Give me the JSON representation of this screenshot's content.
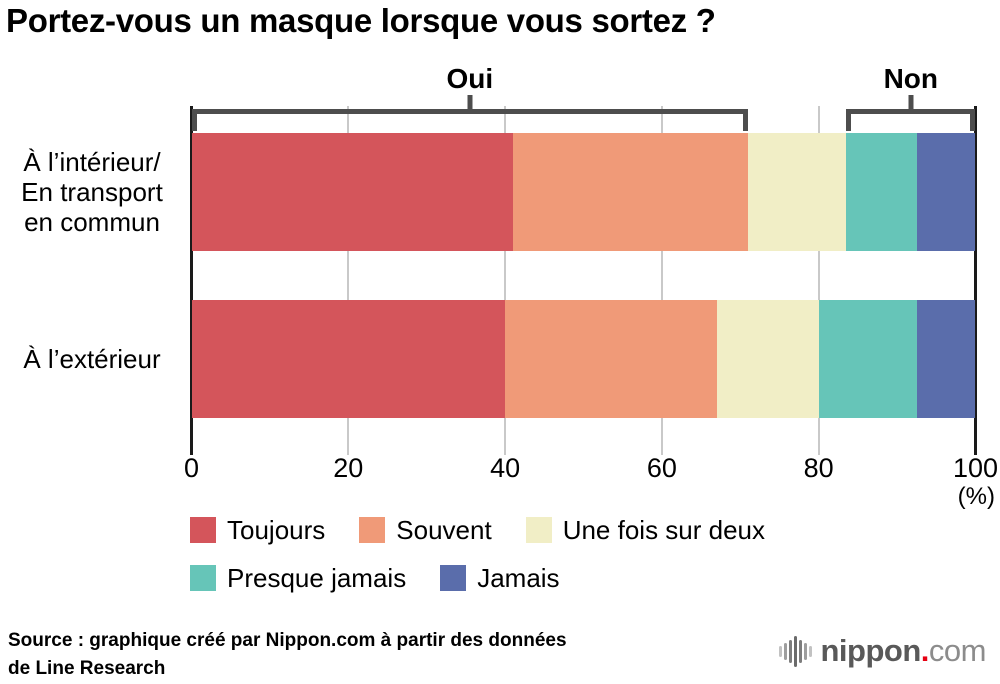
{
  "title": "Portez-vous un masque lorsque vous sortez ?",
  "chart_data": {
    "type": "bar",
    "orientation": "horizontal",
    "stacked": true,
    "title": "Portez-vous un masque lorsque vous sortez ?",
    "categories": [
      "À l’intérieur/\nEn transport\nen commun",
      "À l’extérieur"
    ],
    "series": [
      {
        "name": "Toujours",
        "color": "#d4555b",
        "values": [
          41,
          40
        ]
      },
      {
        "name": "Souvent",
        "color": "#f09a78",
        "values": [
          30,
          27
        ]
      },
      {
        "name": "Une fois sur deux",
        "color": "#f1eec6",
        "values": [
          12.5,
          13
        ]
      },
      {
        "name": "Presque jamais",
        "color": "#66c5b8",
        "values": [
          9,
          12.5
        ]
      },
      {
        "name": "Jamais",
        "color": "#5a6dab",
        "values": [
          7.5,
          7.5
        ]
      }
    ],
    "x_axis": {
      "ticks": [
        0,
        20,
        40,
        60,
        80,
        100
      ],
      "max": 100,
      "unit_label": "(%)"
    },
    "annotations": [
      {
        "label": "Oui",
        "from": 0,
        "to": 71
      },
      {
        "label": "Non",
        "from": 83.5,
        "to": 100
      }
    ],
    "legend_position": "bottom",
    "colors": {
      "gridline": "#c9c9c9",
      "axis_line": "#1a1a1a",
      "bracket": "#4d4d4d"
    }
  },
  "source": {
    "text": "Source : graphique créé par Nippon.com à partir des données\nde Line Research"
  },
  "logo": {
    "icon": "waveform-bars-icon",
    "brand": "nippon",
    "dot": ".",
    "tld": "com"
  }
}
